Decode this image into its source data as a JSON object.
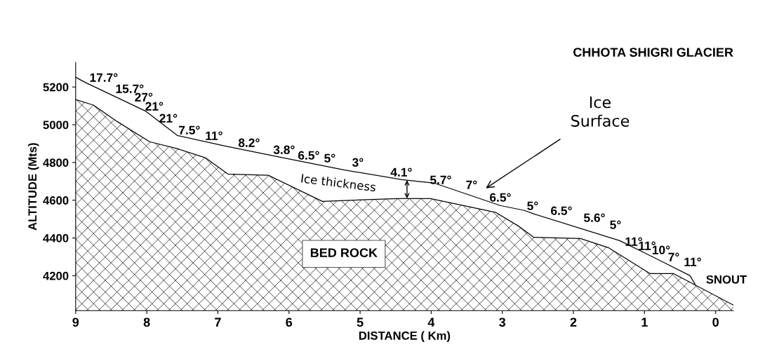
{
  "chart_data": {
    "type": "line",
    "title": "CHHOTA SHIGRI GLACIER",
    "xlabel": "DISTANCE ( Km)",
    "ylabel": "ALTITUDE (Mts)",
    "xlim": [
      9,
      -0.25
    ],
    "ylim": [
      4015,
      5330
    ],
    "xticks": [
      9,
      8,
      7,
      6,
      5,
      4,
      3,
      2,
      1,
      0
    ],
    "yticks": [
      4200,
      4400,
      4600,
      4800,
      5000,
      5200
    ],
    "grid": false,
    "legend": false,
    "series": [
      {
        "type": "area",
        "color": "#000000",
        "x": [
          9,
          8.75,
          8.42,
          7.96,
          7.57,
          7.17,
          6.86,
          6.29,
          5.53,
          4.47,
          4.01,
          3.09,
          2.76,
          2.56,
          1.9,
          1.51,
          0.92,
          0.59,
          -0.25
        ],
        "values": [
          5133,
          5104,
          5018,
          4910,
          4873,
          4824,
          4739,
          4732,
          4594,
          4609,
          4609,
          4535,
          4460,
          4404,
          4397,
          4349,
          4211,
          4211,
          4044
        ]
      },
      {
        "color": "#000000",
        "x": [
          9,
          8.88,
          8.73,
          8.02,
          7.57,
          6.91,
          6.12,
          5.23,
          4.41,
          3.95,
          3.03,
          2.69,
          2.56,
          1.35,
          1.01,
          0.69,
          0.36,
          0.29
        ],
        "values": [
          5252,
          5227,
          5200,
          5073,
          4943,
          4888,
          4828,
          4761,
          4709,
          4690,
          4572,
          4546,
          4528,
          4386,
          4323,
          4263,
          4200,
          4155
        ]
      }
    ],
    "annotations": [
      "Ice\nSurface",
      "Ice thickness",
      "BED ROCK",
      "SNOUT",
      "17.7°",
      "15.7°",
      "27°",
      "21°",
      "21°",
      "7.5°",
      "11°",
      "8.2°",
      "3.8°",
      "6.5°",
      "5°",
      "3°",
      {
        "text": "4.1°",
        "x": 4.34,
        "y": 4706
      },
      "5.7°",
      "7°",
      "6.5°",
      "5°",
      "6.5°",
      "5.6°",
      "5°",
      "11°",
      "11°",
      "10°",
      "7°",
      "11°"
    ]
  }
}
